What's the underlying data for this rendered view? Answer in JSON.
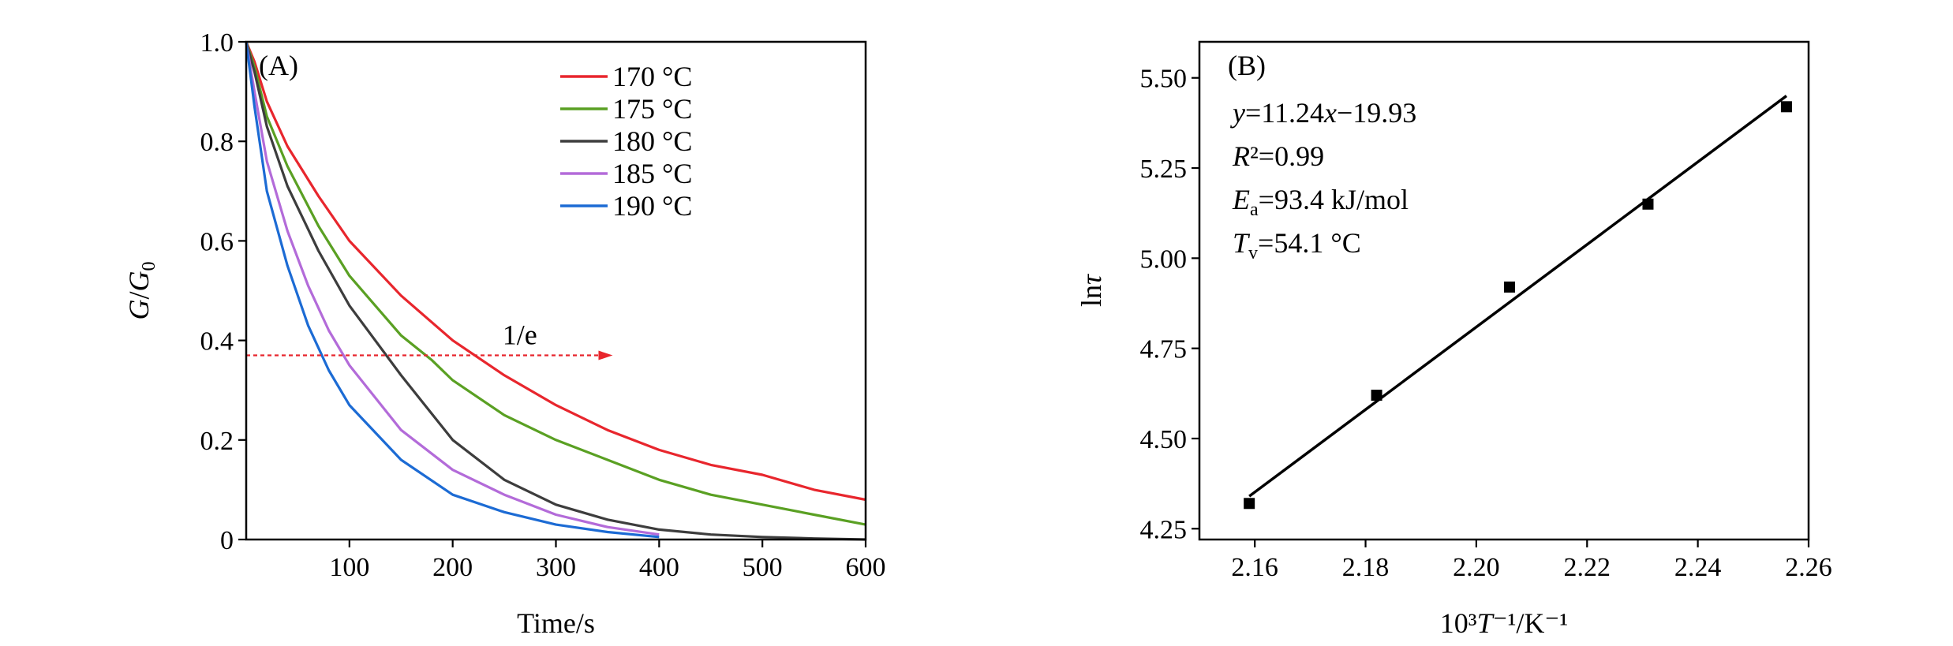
{
  "chart_data": [
    {
      "type": "line",
      "panel_label": "(A)",
      "xlabel": "Time/s",
      "ylabel": "G/G0",
      "xlim": [
        0,
        600
      ],
      "ylim": [
        0,
        1.0
      ],
      "xticks": [
        {
          "value": 100,
          "label": "100"
        },
        {
          "value": 200,
          "label": "200"
        },
        {
          "value": 300,
          "label": "300"
        },
        {
          "value": 400,
          "label": "400"
        },
        {
          "value": 500,
          "label": "500"
        },
        {
          "value": 600,
          "label": "600"
        }
      ],
      "yticks": [
        {
          "value": 0,
          "label": "0"
        },
        {
          "value": 0.2,
          "label": "0.2"
        },
        {
          "value": 0.4,
          "label": "0.4"
        },
        {
          "value": 0.6,
          "label": "0.6"
        },
        {
          "value": 0.8,
          "label": "0.8"
        },
        {
          "value": 1.0,
          "label": "1.0"
        }
      ],
      "legend_position": "top-right",
      "series": [
        {
          "name": "170 °C",
          "color": "#e8262d",
          "x": [
            0,
            8,
            20,
            40,
            70,
            100,
            150,
            200,
            250,
            300,
            350,
            400,
            450,
            500,
            550,
            600
          ],
          "y": [
            1.0,
            0.96,
            0.88,
            0.79,
            0.69,
            0.6,
            0.49,
            0.4,
            0.33,
            0.27,
            0.22,
            0.18,
            0.15,
            0.13,
            0.1,
            0.08
          ]
        },
        {
          "name": "175 °C",
          "color": "#5aa023",
          "x": [
            0,
            8,
            20,
            40,
            70,
            100,
            150,
            180,
            200,
            250,
            300,
            350,
            400,
            450,
            500,
            550,
            600
          ],
          "y": [
            1.0,
            0.95,
            0.85,
            0.75,
            0.63,
            0.53,
            0.41,
            0.36,
            0.32,
            0.25,
            0.2,
            0.16,
            0.12,
            0.09,
            0.07,
            0.05,
            0.03
          ]
        },
        {
          "name": "180 °C",
          "color": "#3d3d3d",
          "x": [
            0,
            8,
            20,
            40,
            70,
            100,
            150,
            200,
            250,
            300,
            350,
            400,
            450,
            500,
            550,
            600
          ],
          "y": [
            1.0,
            0.94,
            0.83,
            0.71,
            0.58,
            0.47,
            0.33,
            0.2,
            0.12,
            0.07,
            0.04,
            0.02,
            0.01,
            0.005,
            0.002,
            0.0
          ]
        },
        {
          "name": "185 °C",
          "color": "#b36bd9",
          "x": [
            0,
            8,
            20,
            40,
            60,
            80,
            100,
            150,
            200,
            250,
            300,
            350,
            400
          ],
          "y": [
            1.0,
            0.9,
            0.76,
            0.62,
            0.51,
            0.42,
            0.35,
            0.22,
            0.14,
            0.09,
            0.05,
            0.025,
            0.01
          ]
        },
        {
          "name": "190 °C",
          "color": "#1c6bd4",
          "x": [
            0,
            8,
            20,
            40,
            60,
            80,
            100,
            150,
            200,
            250,
            300,
            350,
            400
          ],
          "y": [
            1.0,
            0.87,
            0.7,
            0.55,
            0.43,
            0.34,
            0.27,
            0.16,
            0.09,
            0.055,
            0.03,
            0.015,
            0.005
          ]
        }
      ],
      "annotation": {
        "text": "1/e",
        "y": 0.37,
        "x_start": 0,
        "x_end": 355,
        "color": "#e8262d"
      }
    },
    {
      "type": "scatter",
      "panel_label": "(B)",
      "xlabel": "10³T⁻¹/K⁻¹",
      "ylabel": "lnτ",
      "xlim": [
        2.15,
        2.26
      ],
      "ylim": [
        4.22,
        5.6
      ],
      "xticks": [
        {
          "value": 2.16,
          "label": "2.16"
        },
        {
          "value": 2.18,
          "label": "2.18"
        },
        {
          "value": 2.2,
          "label": "2.20"
        },
        {
          "value": 2.22,
          "label": "2.22"
        },
        {
          "value": 2.24,
          "label": "2.24"
        },
        {
          "value": 2.26,
          "label": "2.26"
        }
      ],
      "yticks": [
        {
          "value": 4.25,
          "label": "4.25"
        },
        {
          "value": 4.5,
          "label": "4.50"
        },
        {
          "value": 4.75,
          "label": "4.75"
        },
        {
          "value": 5.0,
          "label": "5.00"
        },
        {
          "value": 5.25,
          "label": "5.25"
        },
        {
          "value": 5.5,
          "label": "5.50"
        }
      ],
      "points": {
        "x": [
          2.159,
          2.182,
          2.206,
          2.231,
          2.256
        ],
        "y": [
          4.32,
          4.62,
          4.92,
          5.15,
          5.42
        ],
        "color": "#000000"
      },
      "fit_line": {
        "x": [
          2.159,
          2.256
        ],
        "y": [
          4.34,
          5.45
        ],
        "color": "#000000"
      },
      "annotations": {
        "equation": "y=11.24x−19.93",
        "r2": "R²=0.99",
        "ea": "Ea=93.4 kJ/mol",
        "tv": "Tv=54.1 °C"
      }
    }
  ]
}
